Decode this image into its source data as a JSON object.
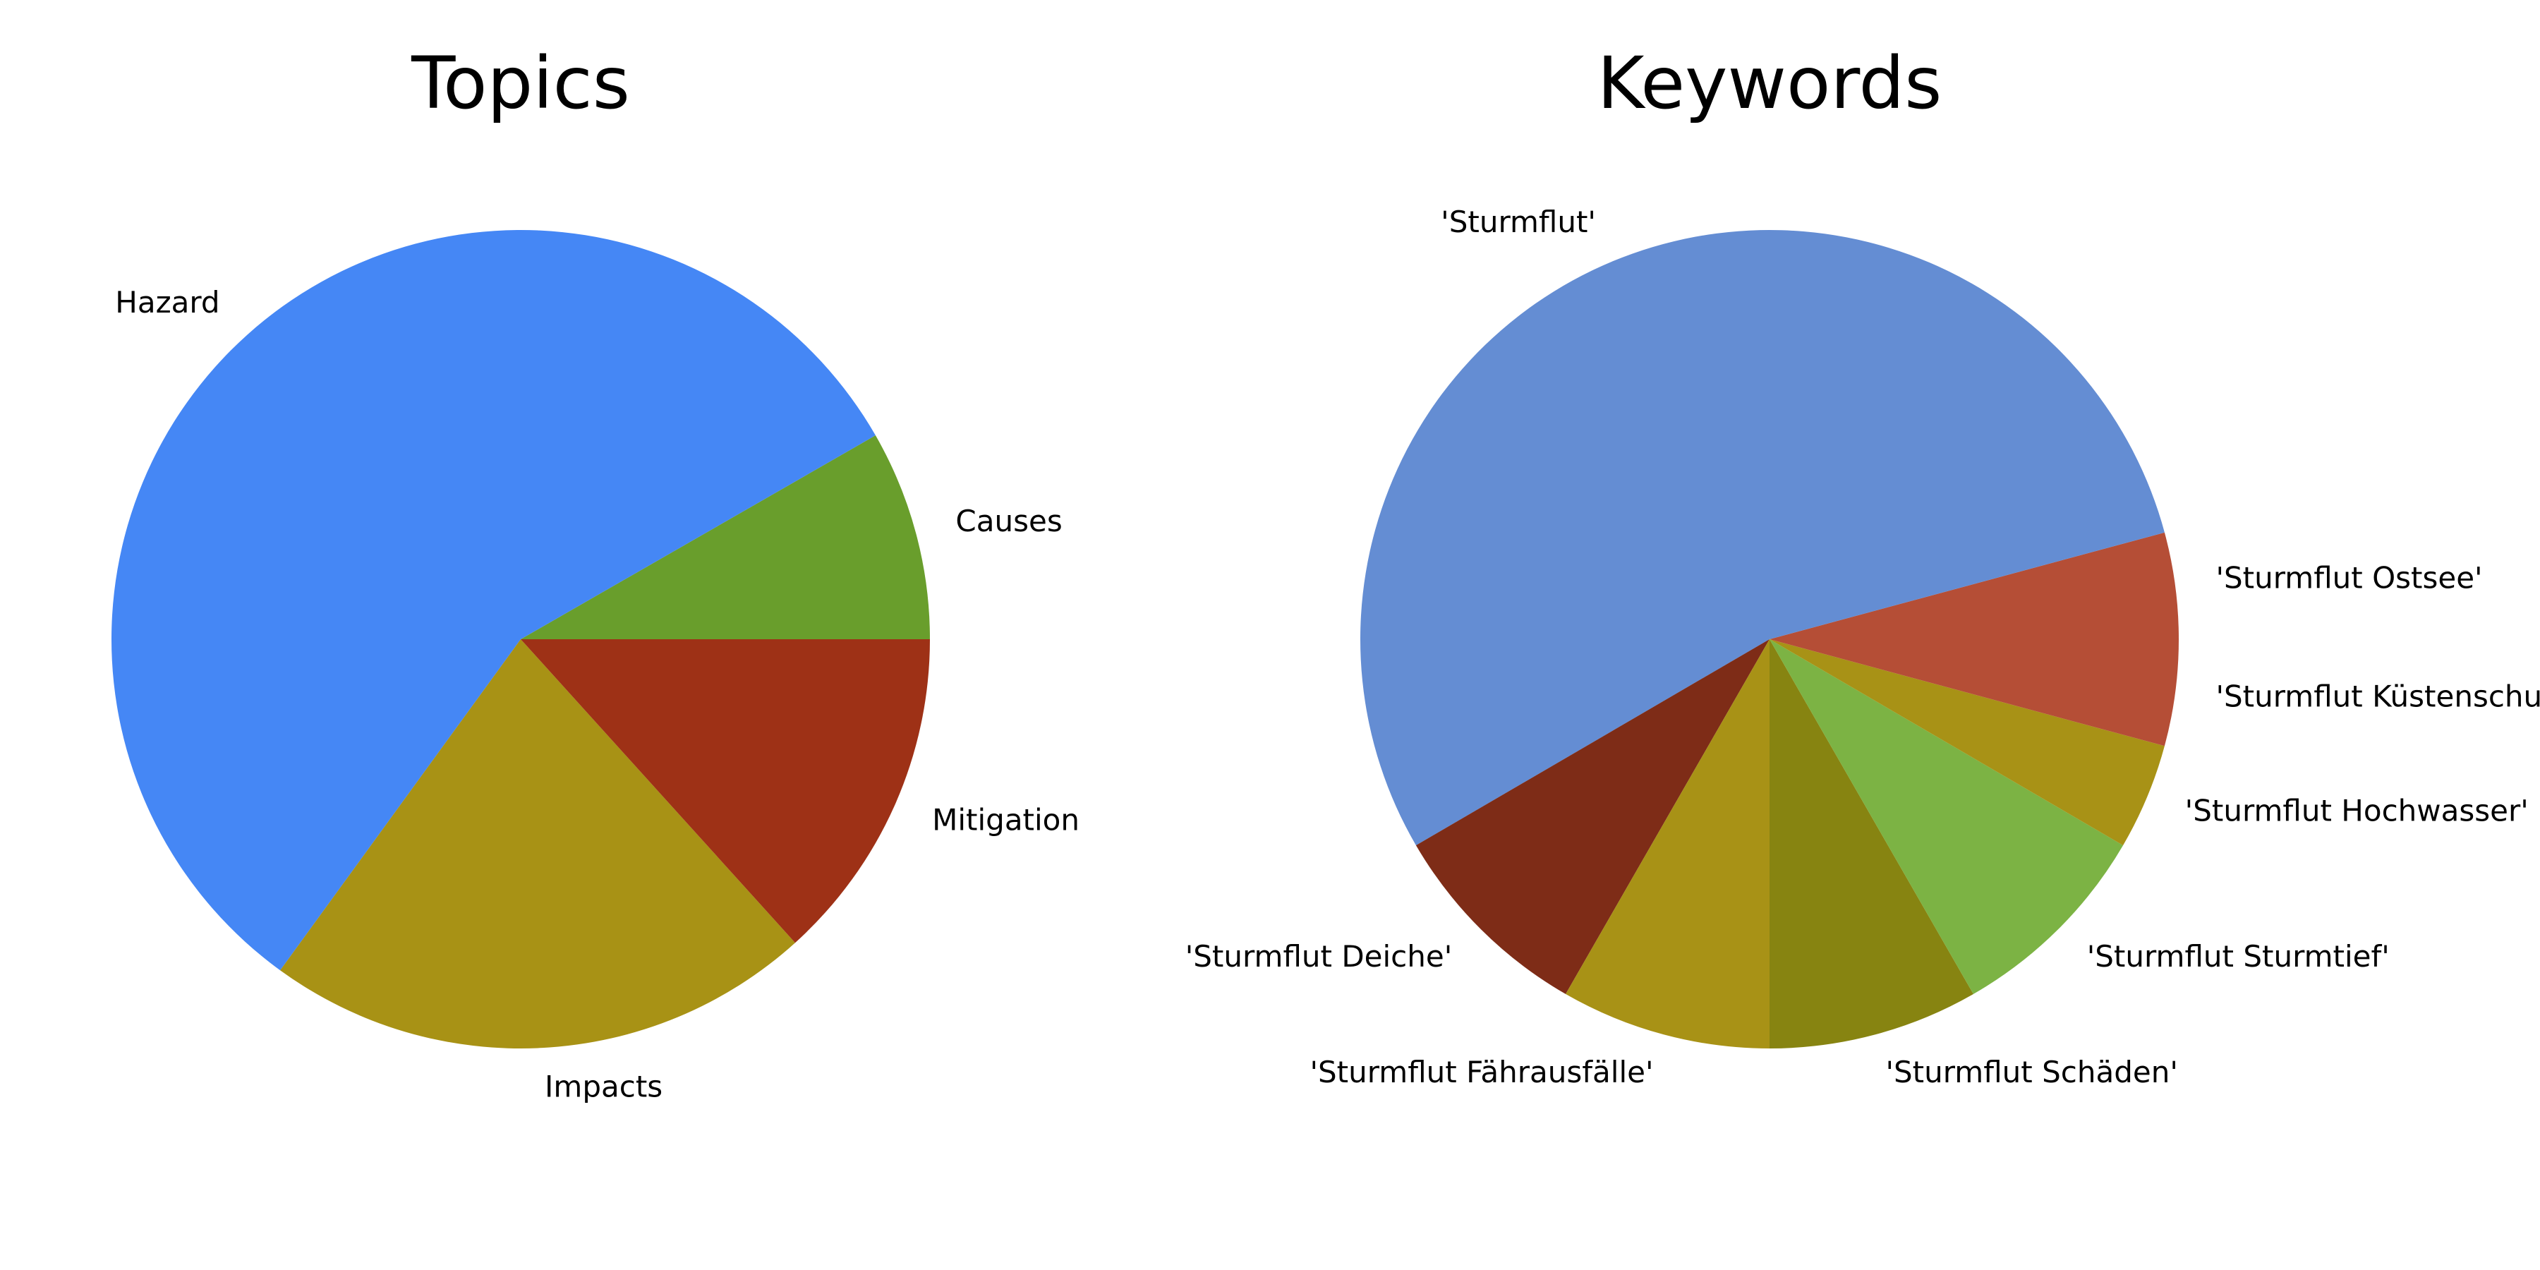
{
  "chart_data": [
    {
      "type": "pie",
      "title": "Topics",
      "start_angle": "3 o'clock",
      "direction": "counterclockwise",
      "slices": [
        {
          "label": "Causes",
          "value": 8.3,
          "color": "#699e2c"
        },
        {
          "label": "Hazard",
          "value": 56.7,
          "color": "#4587f5"
        },
        {
          "label": "Impacts",
          "value": 21.7,
          "color": "#a89215"
        },
        {
          "label": "Mitigation",
          "value": 13.3,
          "color": "#9e3116"
        }
      ]
    },
    {
      "type": "pie",
      "title": "Keywords",
      "start_angle": "3 o'clock",
      "direction": "counterclockwise",
      "slices": [
        {
          "label": "'Sturmflut Ostsee'",
          "value": 4.2,
          "color": "#b54e36"
        },
        {
          "label": "'Sturmflut'",
          "value": 54.2,
          "color": "#648dd3"
        },
        {
          "label": "'Sturmflut Deiche'",
          "value": 8.3,
          "color": "#7e2c17"
        },
        {
          "label": "'Sturmflut Fährausfälle'",
          "value": 8.3,
          "color": "#a89216"
        },
        {
          "label": "'Sturmflut Schäden'",
          "value": 8.3,
          "color": "#878411"
        },
        {
          "label": "'Sturmflut Sturmtief'",
          "value": 8.3,
          "color": "#7cb344"
        },
        {
          "label": "'Sturmflut Hochwasser'",
          "value": 4.2,
          "color": "#a89216"
        },
        {
          "label": "'Sturmflut Küstenschutz'",
          "value": 4.2,
          "color": "#b54e36"
        }
      ]
    }
  ]
}
